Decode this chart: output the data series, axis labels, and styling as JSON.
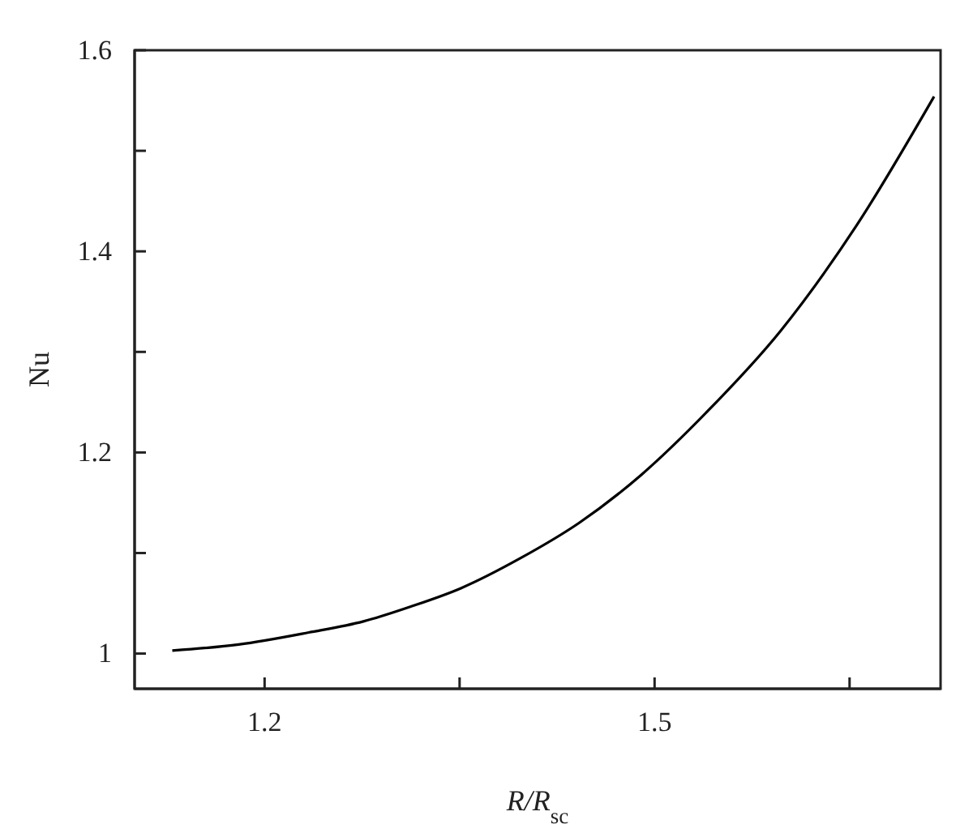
{
  "chart_data": {
    "type": "line",
    "xlabel": "R/R$_{sc}$",
    "ylabel": "Nu",
    "xlim": [
      1.1,
      1.72
    ],
    "xticks": [
      1.2,
      {
        "value": 1.35,
        "label": null
      },
      1.5,
      {
        "value": 1.65,
        "label": null
      }
    ],
    "ylim": [
      0.965,
      1.6
    ],
    "yticks": [
      1,
      {
        "value": 1.1,
        "label": null
      },
      1.2,
      {
        "value": 1.3,
        "label": null
      },
      1.4,
      {
        "value": 1.5,
        "label": null
      },
      1.6
    ],
    "grid": false,
    "marker": "none",
    "line_style": "solid",
    "series": [
      {
        "color": "#000000",
        "x": [
          1.129,
          1.18,
          1.234,
          1.276,
          1.313,
          1.351,
          1.397,
          1.442,
          1.49,
          1.54,
          1.597,
          1.655,
          1.715
        ],
        "values": [
          1.003,
          1.009,
          1.021,
          1.032,
          1.047,
          1.065,
          1.095,
          1.13,
          1.178,
          1.24,
          1.321,
          1.425,
          1.554
        ]
      }
    ]
  }
}
